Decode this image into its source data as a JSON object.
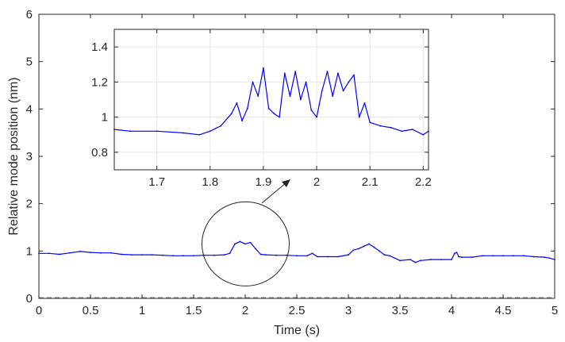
{
  "chart_data": [
    {
      "id": "main",
      "type": "line",
      "title": "",
      "xlabel": "Time (s)",
      "ylabel": "Relative mode position (nm)",
      "xlim": [
        0,
        5
      ],
      "ylim": [
        0,
        6
      ],
      "xticks": [
        0,
        0.5,
        1,
        1.5,
        2,
        2.5,
        3,
        3.5,
        4,
        4.5,
        5
      ],
      "xtick_labels": [
        "0",
        "0.5",
        "1",
        "1.5",
        "2",
        "2.5",
        "3",
        "3.5",
        "4",
        "4.5",
        "5"
      ],
      "yticks": [
        0,
        1,
        2,
        3,
        4,
        5,
        6
      ],
      "ytick_labels": [
        "0",
        "1",
        "2",
        "3",
        "4",
        "5",
        "6"
      ],
      "grid": false,
      "color": "#0000ff",
      "baseline_color": "#808080",
      "series": [
        {
          "x": [
            0,
            0.1,
            0.2,
            0.3,
            0.4,
            0.5,
            0.6,
            0.7,
            0.8,
            0.9,
            1.0,
            1.1,
            1.2,
            1.3,
            1.4,
            1.5,
            1.6,
            1.7,
            1.8,
            1.85,
            1.9,
            1.95,
            2.0,
            2.05,
            2.1,
            2.15,
            2.2,
            2.3,
            2.4,
            2.5,
            2.6,
            2.65,
            2.7,
            2.8,
            2.9,
            3.0,
            3.05,
            3.1,
            3.15,
            3.2,
            3.25,
            3.3,
            3.35,
            3.4,
            3.5,
            3.6,
            3.65,
            3.7,
            3.8,
            3.9,
            4.0,
            4.03,
            4.05,
            4.07,
            4.1,
            4.2,
            4.3,
            4.4,
            4.5,
            4.6,
            4.7,
            4.8,
            4.9,
            4.95,
            5.0
          ],
          "y": [
            0.95,
            0.95,
            0.93,
            0.96,
            0.99,
            0.97,
            0.96,
            0.96,
            0.93,
            0.92,
            0.92,
            0.92,
            0.91,
            0.9,
            0.9,
            0.9,
            0.91,
            0.91,
            0.92,
            0.95,
            1.15,
            1.2,
            1.15,
            1.18,
            1.05,
            0.93,
            0.92,
            0.91,
            0.91,
            0.9,
            0.9,
            0.95,
            0.88,
            0.88,
            0.88,
            0.92,
            1.02,
            1.05,
            1.1,
            1.15,
            1.08,
            1.0,
            0.92,
            0.9,
            0.8,
            0.82,
            0.76,
            0.8,
            0.82,
            0.82,
            0.82,
            0.95,
            0.97,
            0.88,
            0.87,
            0.87,
            0.9,
            0.9,
            0.9,
            0.9,
            0.9,
            0.88,
            0.87,
            0.85,
            0.82
          ]
        }
      ],
      "annotation": {
        "shape": "circle",
        "center_x": 1.95,
        "center_y": 1.15,
        "arrow_to_inset": true
      }
    },
    {
      "id": "inset",
      "type": "line",
      "title": "",
      "xlabel": "",
      "ylabel": "",
      "xlim": [
        1.62,
        2.21
      ],
      "ylim": [
        0.7,
        1.5
      ],
      "xticks": [
        1.7,
        1.8,
        1.9,
        2.0,
        2.1,
        2.2
      ],
      "xtick_labels": [
        "1.7",
        "1.8",
        "1.9",
        "2",
        "2.1",
        "2.2"
      ],
      "yticks": [
        0.8,
        1.0,
        1.2,
        1.4
      ],
      "ytick_labels": [
        "0.8",
        "1",
        "1.2",
        "1.4"
      ],
      "grid": true,
      "color": "#0000ff",
      "series": [
        {
          "x": [
            1.62,
            1.65,
            1.7,
            1.75,
            1.78,
            1.8,
            1.82,
            1.84,
            1.85,
            1.86,
            1.87,
            1.88,
            1.89,
            1.9,
            1.91,
            1.92,
            1.93,
            1.94,
            1.95,
            1.96,
            1.97,
            1.98,
            1.99,
            2.0,
            2.01,
            2.02,
            2.03,
            2.04,
            2.05,
            2.06,
            2.07,
            2.08,
            2.09,
            2.1,
            2.12,
            2.14,
            2.16,
            2.18,
            2.2,
            2.21
          ],
          "y": [
            0.93,
            0.92,
            0.92,
            0.91,
            0.9,
            0.92,
            0.95,
            1.02,
            1.08,
            0.98,
            1.05,
            1.2,
            1.12,
            1.28,
            1.05,
            1.02,
            1.0,
            1.25,
            1.12,
            1.26,
            1.1,
            1.2,
            1.04,
            1.0,
            1.15,
            1.26,
            1.12,
            1.25,
            1.15,
            1.2,
            1.24,
            1.0,
            1.08,
            0.97,
            0.95,
            0.94,
            0.92,
            0.93,
            0.9,
            0.92
          ]
        }
      ]
    }
  ]
}
